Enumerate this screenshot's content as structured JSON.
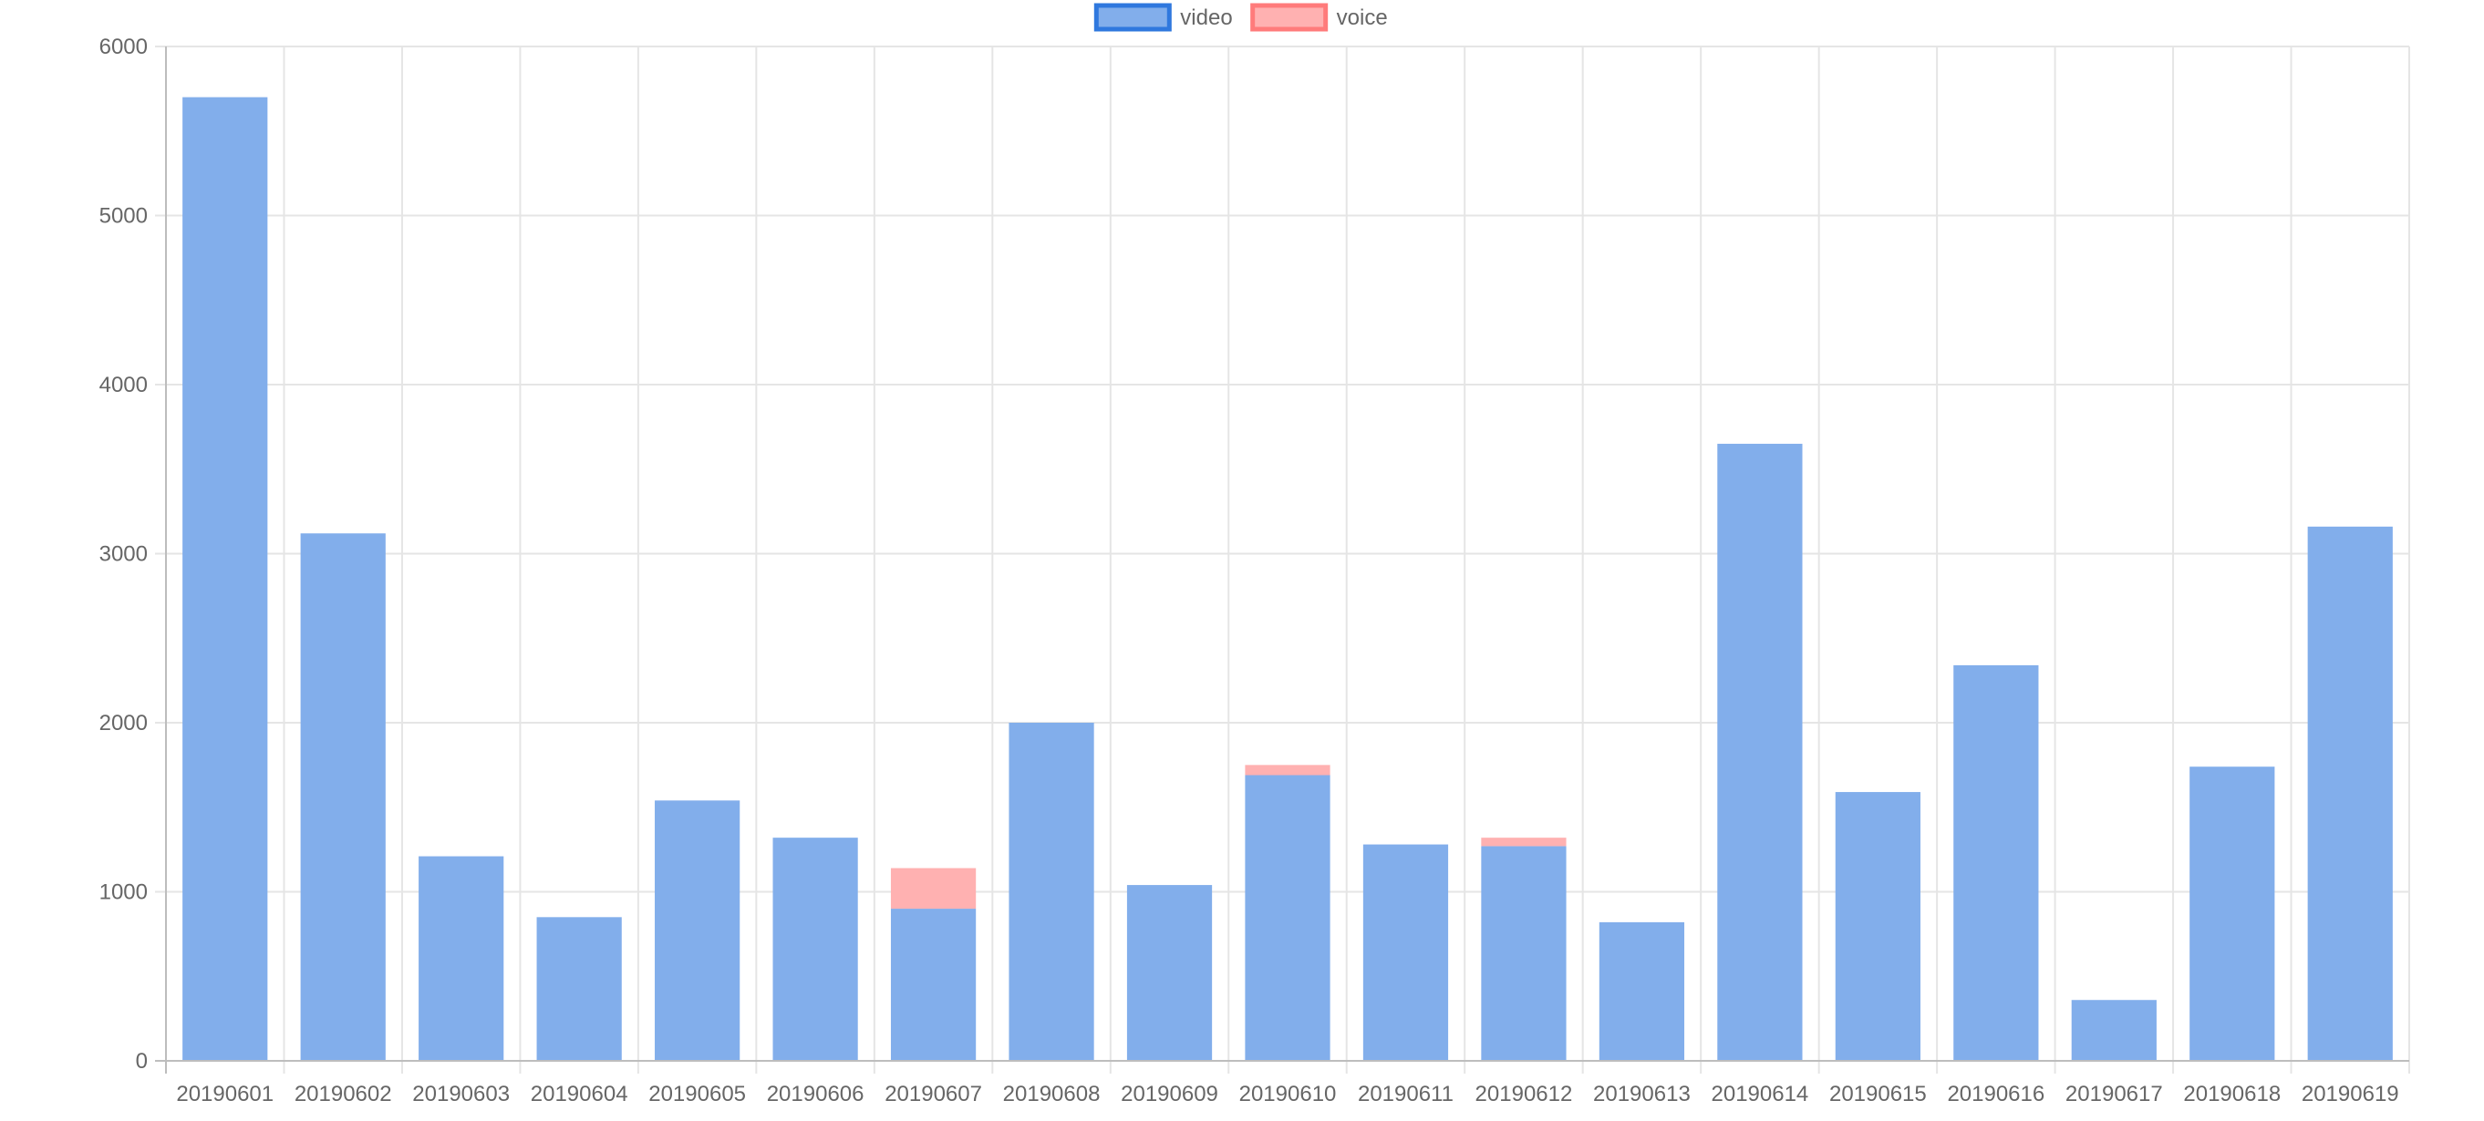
{
  "chart_data": {
    "type": "bar",
    "stacked": true,
    "legend_position": "top",
    "grid": true,
    "categories": [
      "20190601",
      "20190602",
      "20190603",
      "20190604",
      "20190605",
      "20190606",
      "20190607",
      "20190608",
      "20190609",
      "20190610",
      "20190611",
      "20190612",
      "20190613",
      "20190614",
      "20190615",
      "20190616",
      "20190617",
      "20190618",
      "20190619"
    ],
    "series": [
      {
        "name": "video",
        "fill": "#82AEEB",
        "stroke": "#2F78DE",
        "values": [
          5700,
          3120,
          1210,
          850,
          1540,
          1320,
          900,
          2000,
          1040,
          1690,
          1280,
          1270,
          820,
          3650,
          1590,
          2340,
          360,
          1740,
          3160
        ]
      },
      {
        "name": "voice",
        "fill": "#FFB1B1",
        "stroke": "#FF7B7B",
        "values": [
          0,
          0,
          0,
          0,
          0,
          0,
          240,
          0,
          0,
          60,
          0,
          50,
          0,
          0,
          0,
          0,
          0,
          0,
          0
        ]
      }
    ],
    "ylim": [
      0,
      6000
    ],
    "yticks": [
      0,
      1000,
      2000,
      3000,
      4000,
      5000,
      6000
    ],
    "ytick_labels": [
      "0",
      "1000",
      "2000",
      "3000",
      "4000",
      "5000",
      "6000"
    ],
    "title": "",
    "xlabel": "",
    "ylabel": ""
  },
  "colors": {
    "grid": "#E5E5E5",
    "axis": "#BDBDBD",
    "text": "#666666"
  }
}
